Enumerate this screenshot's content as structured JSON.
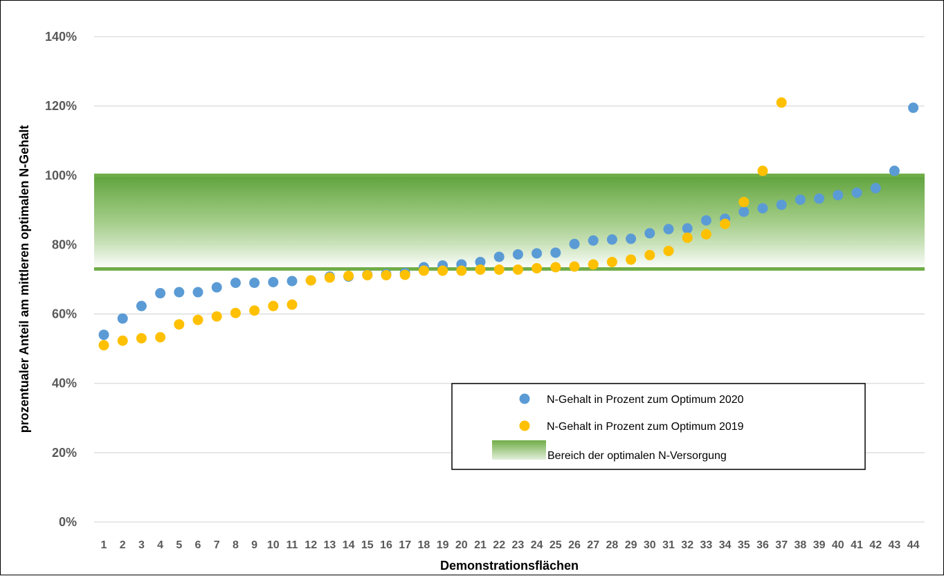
{
  "chart_data": {
    "type": "scatter",
    "xlabel": "Demonstrationsflächen",
    "ylabel": "prozentualer Anteil am mittleren optimalen N-Gehalt",
    "ylim": [
      0,
      140
    ],
    "yticks": [
      "0%",
      "20%",
      "40%",
      "60%",
      "80%",
      "100%",
      "120%",
      "140%"
    ],
    "ytick_values": [
      0,
      20,
      40,
      60,
      80,
      100,
      120,
      140
    ],
    "categories": [
      "1",
      "2",
      "3",
      "4",
      "5",
      "6",
      "7",
      "8",
      "9",
      "10",
      "11",
      "12",
      "13",
      "14",
      "15",
      "16",
      "17",
      "18",
      "19",
      "20",
      "21",
      "22",
      "23",
      "24",
      "25",
      "26",
      "27",
      "28",
      "29",
      "30",
      "31",
      "32",
      "33",
      "34",
      "35",
      "36",
      "37",
      "38",
      "39",
      "40",
      "41",
      "42",
      "43",
      "44"
    ],
    "grid": true,
    "legend_position": "bottom-right",
    "series": [
      {
        "name": "N-Gehalt in Prozent zum Optimum 2020",
        "color": "#5B9BD5",
        "values": [
          54,
          58.7,
          62.3,
          66,
          66.3,
          66.3,
          67.7,
          69,
          69,
          69.2,
          69.5,
          69.7,
          70.8,
          70.8,
          71.3,
          71.5,
          71.8,
          73.5,
          74,
          74.3,
          75,
          76.5,
          77.2,
          77.5,
          77.7,
          80.2,
          81.2,
          81.5,
          81.7,
          83.3,
          84.5,
          84.7,
          87,
          87.5,
          89.5,
          90.5,
          91.5,
          93,
          93.3,
          94.3,
          95,
          96.3,
          101.3,
          119.5
        ]
      },
      {
        "name": "N-Gehalt in Prozent zum Optimum 2019",
        "color": "#FFC000",
        "values": [
          51,
          52.3,
          53,
          53.3,
          57,
          58.3,
          59.3,
          60.3,
          61,
          62.3,
          62.7,
          69.7,
          70.5,
          71,
          71.2,
          71.2,
          71.3,
          72.5,
          72.5,
          72.5,
          72.8,
          72.8,
          72.8,
          73.2,
          73.5,
          73.7,
          74.3,
          75,
          75.7,
          77,
          78.2,
          82,
          83,
          86,
          92.3,
          101.3,
          121,
          null,
          null,
          null,
          null,
          null,
          null,
          null
        ]
      }
    ],
    "optimal_band": {
      "name": "Bereich der optimalen N-Versorgung",
      "lower": 73,
      "upper": 100,
      "color": "#70AD47"
    }
  }
}
